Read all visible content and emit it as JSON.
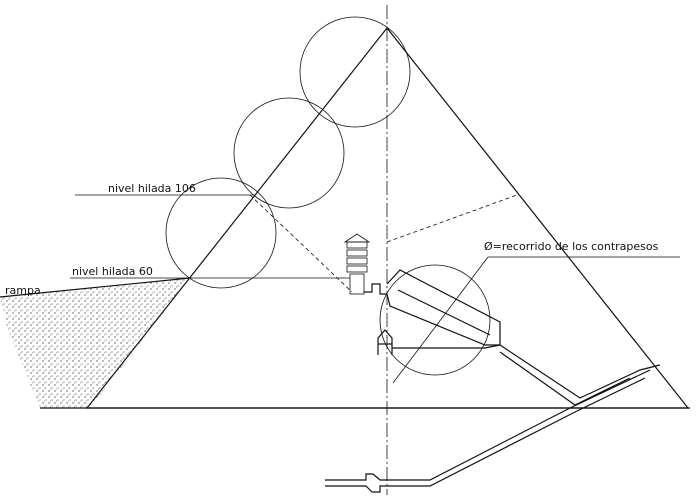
{
  "labels": {
    "level_106": "nivel hilada 106",
    "level_60": "nivel hilada 60",
    "ramp": "rampa",
    "counterweight_path": "Ø=recorrido de los contrapesos"
  },
  "colors": {
    "ink": "#111111",
    "paper": "#ffffff"
  }
}
